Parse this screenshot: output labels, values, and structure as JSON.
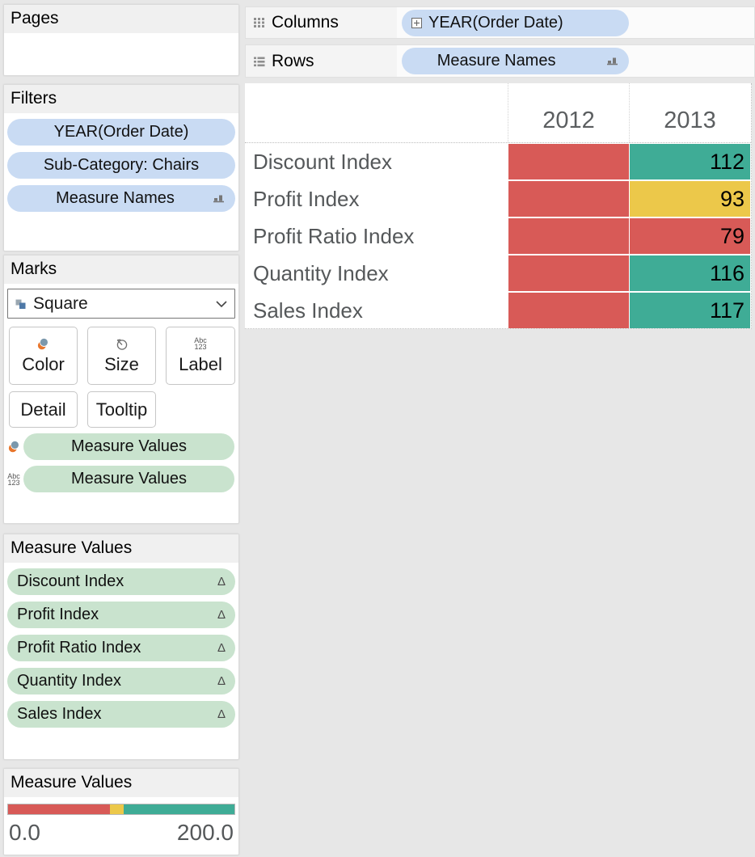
{
  "colors": {
    "red": "#d85a57",
    "yellow": "#ecc84a",
    "green": "#3fac96",
    "pill_blue": "#c9dbf3",
    "pill_green": "#c9e3ce"
  },
  "pages_card": {
    "title": "Pages"
  },
  "filters_card": {
    "title": "Filters",
    "pills": [
      {
        "label": "YEAR(Order Date)",
        "right_icon": null
      },
      {
        "label": "Sub-Category: Chairs",
        "right_icon": null
      },
      {
        "label": "Measure Names",
        "right_icon": "sort-icon"
      }
    ]
  },
  "marks_card": {
    "title": "Marks",
    "mark_type": "Square",
    "buttons_row1": [
      {
        "label": "Color",
        "icon": "color-icon"
      },
      {
        "label": "Size",
        "icon": "size-icon"
      },
      {
        "label": "Label",
        "icon": "abc123-icon"
      }
    ],
    "buttons_row2": [
      {
        "label": "Detail"
      },
      {
        "label": "Tooltip"
      }
    ],
    "pills": [
      {
        "label": "Measure Values",
        "left_icon": "color-icon"
      },
      {
        "label": "Measure Values",
        "left_icon": "abc123-icon"
      }
    ]
  },
  "measure_values_card": {
    "title": "Measure Values",
    "pills": [
      {
        "label": "Discount Index"
      },
      {
        "label": "Profit Index"
      },
      {
        "label": "Profit Ratio Index"
      },
      {
        "label": "Quantity Index"
      },
      {
        "label": "Sales Index"
      }
    ]
  },
  "legend_card": {
    "title": "Measure Values",
    "min_label": "0.0",
    "max_label": "200.0",
    "segments": [
      {
        "color": "red",
        "pct": 45
      },
      {
        "color": "yellow",
        "pct": 6
      },
      {
        "color": "green",
        "pct": 49
      }
    ]
  },
  "shelves": {
    "columns_label": "Columns",
    "columns_pill": "YEAR(Order Date)",
    "rows_label": "Rows",
    "rows_pill": "Measure Names"
  },
  "table": {
    "col_headers": [
      "2012",
      "2013"
    ],
    "rows": [
      {
        "label": "Discount Index",
        "cells": [
          {
            "color": "red",
            "value": ""
          },
          {
            "color": "green",
            "value": "112"
          }
        ]
      },
      {
        "label": "Profit Index",
        "cells": [
          {
            "color": "red",
            "value": ""
          },
          {
            "color": "yellow",
            "value": "93"
          }
        ]
      },
      {
        "label": "Profit Ratio Index",
        "cells": [
          {
            "color": "red",
            "value": ""
          },
          {
            "color": "red",
            "value": "79"
          }
        ]
      },
      {
        "label": "Quantity Index",
        "cells": [
          {
            "color": "red",
            "value": ""
          },
          {
            "color": "green",
            "value": "116"
          }
        ]
      },
      {
        "label": "Sales Index",
        "cells": [
          {
            "color": "red",
            "value": ""
          },
          {
            "color": "green",
            "value": "117"
          }
        ]
      }
    ]
  }
}
